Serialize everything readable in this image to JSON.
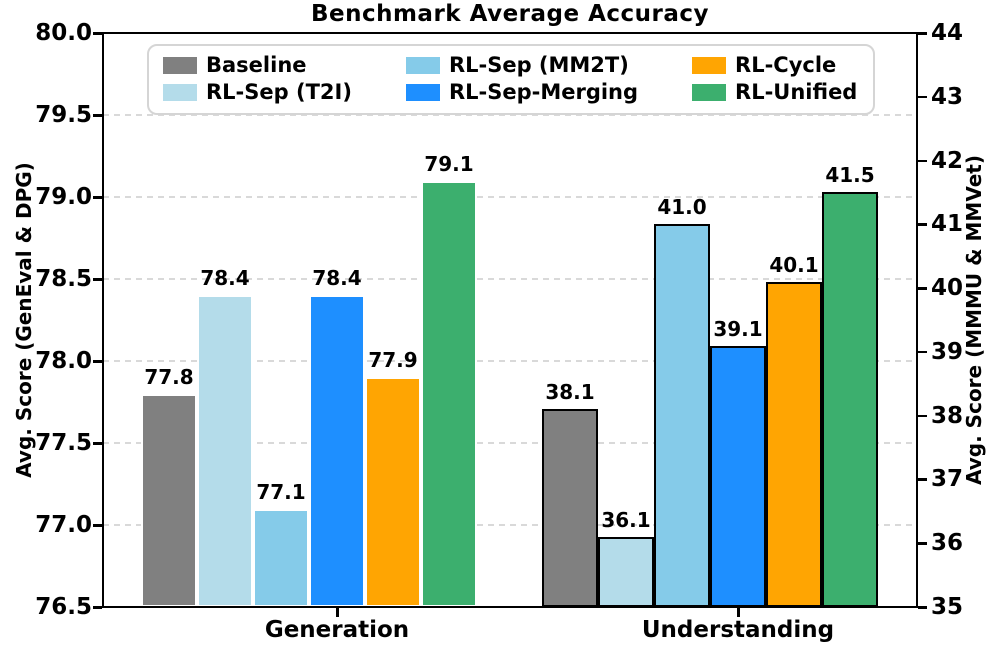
{
  "chart_data": {
    "type": "bar",
    "title": "Benchmark Average Accuracy",
    "categories": [
      "Generation",
      "Understanding"
    ],
    "category_axis": [
      "left",
      "right"
    ],
    "series": [
      {
        "name": "Baseline",
        "color": "#808080",
        "values": [
          77.8,
          38.1
        ]
      },
      {
        "name": "RL-Sep (T2I)",
        "color": "#B4DCEA",
        "values": [
          78.4,
          36.1
        ]
      },
      {
        "name": "RL-Sep (MM2T)",
        "color": "#85CBE9",
        "values": [
          77.1,
          41.0
        ]
      },
      {
        "name": "RL-Sep-Merging",
        "color": "#1E8FFF",
        "values": [
          78.4,
          39.1
        ]
      },
      {
        "name": "RL-Cycle",
        "color": "#FFA502",
        "values": [
          77.9,
          40.1
        ]
      },
      {
        "name": "RL-Unified",
        "color": "#3CAF6E",
        "values": [
          79.1,
          41.5
        ]
      }
    ],
    "bar_value_labels": [
      "77.8",
      "78.4",
      "77.1",
      "78.4",
      "77.9",
      "79.1",
      "38.1",
      "36.1",
      "41.0",
      "39.1",
      "40.1",
      "41.5"
    ],
    "bar_edge_colors": [
      "#FFFFFF",
      "#000000"
    ],
    "left_axis": {
      "label": "Avg. Score (GenEval & DPG)",
      "min": 76.5,
      "max": 80.0,
      "ticks": [
        76.5,
        77.0,
        77.5,
        78.0,
        78.5,
        79.0,
        79.5,
        80.0
      ],
      "tick_labels": [
        "76.5",
        "77.0",
        "77.5",
        "78.0",
        "78.5",
        "79.0",
        "79.5",
        "80.0"
      ]
    },
    "right_axis": {
      "label": "Avg. Score (MMMU & MMVet)",
      "min": 35,
      "max": 44,
      "ticks": [
        35,
        36,
        37,
        38,
        39,
        40,
        41,
        42,
        43,
        44
      ],
      "tick_labels": [
        "35",
        "36",
        "37",
        "38",
        "39",
        "40",
        "41",
        "42",
        "43",
        "44"
      ]
    },
    "grid": {
      "horizontal": true,
      "style": "dashed",
      "color": "#D9D9D9",
      "follows": "left_axis"
    },
    "legend": {
      "position": "upper-left-inside",
      "rows": 2,
      "columns": 3
    }
  }
}
